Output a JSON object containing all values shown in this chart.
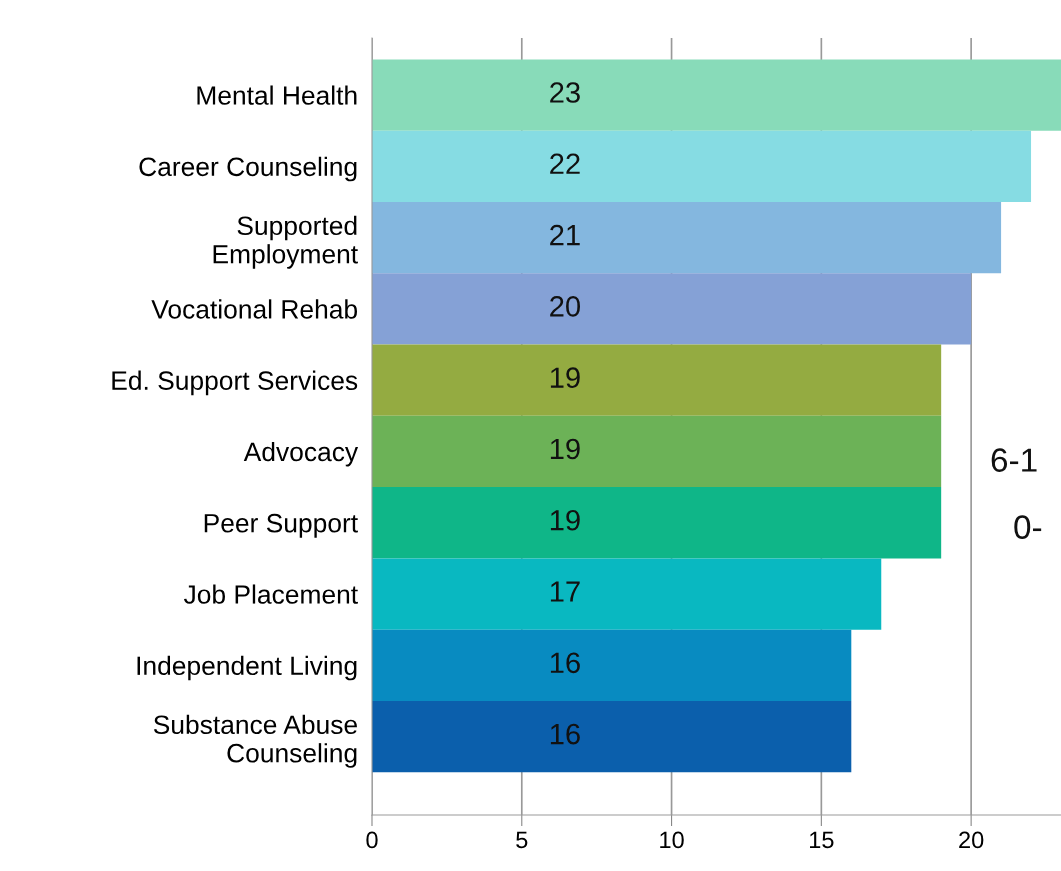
{
  "chart_data": {
    "type": "bar",
    "orientation": "horizontal",
    "categories": [
      "Mental Health",
      "Career Counseling",
      "Supported\nEmployment",
      "Vocational Rehab",
      "Ed. Support Services",
      "Advocacy",
      "Peer Support",
      "Job Placement",
      "Independent Living",
      "Substance Abuse\nCounseling"
    ],
    "values": [
      23,
      22,
      21,
      20,
      19,
      19,
      19,
      17,
      16,
      16
    ],
    "colors": [
      "#88dbb9",
      "#86dce3",
      "#84b7df",
      "#85a1d6",
      "#94ab41",
      "#6cb257",
      "#0fb688",
      "#09b8c1",
      "#088bc1",
      "#0b5fac"
    ],
    "xlim": [
      0,
      23
    ],
    "xticks": [
      0,
      5,
      10,
      15,
      20
    ],
    "grid": "x",
    "data_labels": true,
    "annotations": [
      "6-1",
      "0-"
    ]
  }
}
